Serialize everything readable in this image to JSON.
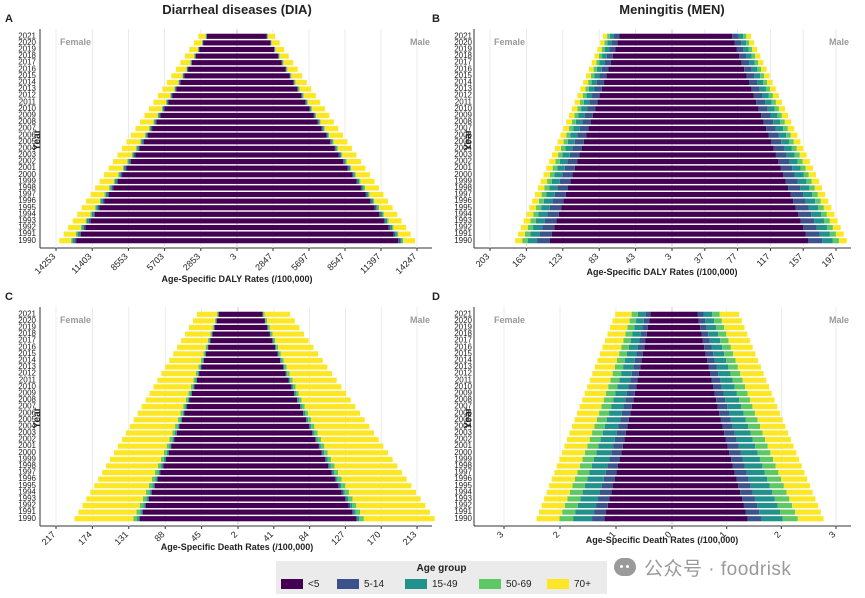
{
  "legend": {
    "title": "Age group",
    "groups": [
      "<5",
      "5-14",
      "15-49",
      "50-69",
      "70+"
    ],
    "colors": [
      "#440154",
      "#3b528b",
      "#21918c",
      "#5ec962",
      "#fde725"
    ]
  },
  "watermark": {
    "text": "公众号 · foodrisk",
    "icon": "wechat-icon"
  },
  "chart_data": [
    {
      "panel": "A",
      "type": "bar",
      "orientation": "horizontal-mirrored",
      "title": "Diarrheal diseases (DIA)",
      "xlabel": "Age-Specific DALY Rates (/100,000)",
      "ylabel": "Year",
      "left_label": "Female",
      "right_label": "Male",
      "years": [
        "1990",
        "1991",
        "1992",
        "1993",
        "1994",
        "1995",
        "1996",
        "1997",
        "1998",
        "1999",
        "2000",
        "2001",
        "2002",
        "2003",
        "2004",
        "2005",
        "2006",
        "2007",
        "2008",
        "2009",
        "2010",
        "2011",
        "2012",
        "2013",
        "2014",
        "2015",
        "2016",
        "2017",
        "2018",
        "2019",
        "2020",
        "2021"
      ],
      "left_ticks": [
        "14253",
        "11403",
        "8553",
        "5703",
        "2853"
      ],
      "center_tick": "3",
      "right_ticks": [
        "2847",
        "5697",
        "8547",
        "11397",
        "14247"
      ],
      "xlim": [
        -14253,
        14247
      ],
      "female_total": {
        "start": 14000,
        "end": 3050
      },
      "male_total": {
        "start": 14100,
        "end": 3020
      },
      "share_start": [
        0.905,
        0.01,
        0.01,
        0.008,
        0.067
      ],
      "share_end": [
        0.78,
        0.01,
        0.01,
        0.01,
        0.19
      ],
      "grid": true
    },
    {
      "panel": "B",
      "type": "bar",
      "orientation": "horizontal-mirrored",
      "title": "Meningitis (MEN)",
      "xlabel": "Age-Specific DALY Rates (/100,000)",
      "ylabel": "Year",
      "left_label": "Female",
      "right_label": "Male",
      "years": [
        "1990",
        "1991",
        "1992",
        "1993",
        "1994",
        "1995",
        "1996",
        "1997",
        "1998",
        "1999",
        "2000",
        "2001",
        "2002",
        "2003",
        "2004",
        "2005",
        "2006",
        "2007",
        "2008",
        "2009",
        "2010",
        "2011",
        "2012",
        "2013",
        "2014",
        "2015",
        "2016",
        "2017",
        "2018",
        "2019",
        "2020",
        "2021"
      ],
      "left_ticks": [
        "203",
        "163",
        "123",
        "83",
        "43"
      ],
      "center_tick": "3",
      "right_ticks": [
        "37",
        "77",
        "117",
        "157",
        "197"
      ],
      "xlim": [
        -203,
        197
      ],
      "female_total": {
        "start": 175,
        "end": 77
      },
      "male_total": {
        "start": 210,
        "end": 95
      },
      "share_start": [
        0.78,
        0.08,
        0.06,
        0.035,
        0.045
      ],
      "share_end": [
        0.76,
        0.08,
        0.06,
        0.04,
        0.06
      ],
      "grid": true
    },
    {
      "panel": "C",
      "type": "bar",
      "orientation": "horizontal-mirrored",
      "title": "",
      "xlabel": "Age-Specific Death Rates (/100,000)",
      "ylabel": "Year",
      "left_label": "Female",
      "right_label": "Male",
      "years": [
        "1990",
        "1991",
        "1992",
        "1993",
        "1994",
        "1995",
        "1996",
        "1997",
        "1998",
        "1999",
        "2000",
        "2001",
        "2002",
        "2003",
        "2004",
        "2005",
        "2006",
        "2007",
        "2008",
        "2009",
        "2010",
        "2011",
        "2012",
        "2013",
        "2014",
        "2015",
        "2016",
        "2017",
        "2018",
        "2019",
        "2020",
        "2021"
      ],
      "left_ticks": [
        "217",
        "174",
        "131",
        "88",
        "45"
      ],
      "center_tick": "2",
      "right_ticks": [
        "41",
        "84",
        "127",
        "170",
        "213"
      ],
      "xlim": [
        -217,
        213
      ],
      "female_total": {
        "start": 195,
        "end": 49
      },
      "male_total": {
        "start": 234,
        "end": 62
      },
      "share_start": [
        0.6,
        0.007,
        0.01,
        0.023,
        0.36
      ],
      "share_end": [
        0.47,
        0.005,
        0.01,
        0.025,
        0.49
      ],
      "grid": true
    },
    {
      "panel": "D",
      "type": "bar",
      "orientation": "horizontal-mirrored",
      "title": "",
      "xlabel": "Age-Specific Death Rates (/100,000)",
      "ylabel": "Year",
      "left_label": "Female",
      "right_label": "Male",
      "years": [
        "1990",
        "1991",
        "1992",
        "1993",
        "1994",
        "1995",
        "1996",
        "1997",
        "1998",
        "1999",
        "2000",
        "2001",
        "2002",
        "2003",
        "2004",
        "2005",
        "2006",
        "2007",
        "2008",
        "2009",
        "2010",
        "2011",
        "2012",
        "2013",
        "2014",
        "2015",
        "2016",
        "2017",
        "2018",
        "2019",
        "2020",
        "2021"
      ],
      "left_ticks": [
        "3",
        "2",
        "1"
      ],
      "center_tick": "0",
      "right_ticks": [
        "1",
        "2",
        "3"
      ],
      "xlim": [
        -3.1,
        3.3
      ],
      "female_total": {
        "start": 2.5,
        "end": 1.05
      },
      "male_total": {
        "start": 3.05,
        "end": 1.35
      },
      "share_start": [
        0.5,
        0.09,
        0.14,
        0.1,
        0.17
      ],
      "share_end": [
        0.38,
        0.09,
        0.13,
        0.11,
        0.29
      ],
      "grid": true
    }
  ]
}
